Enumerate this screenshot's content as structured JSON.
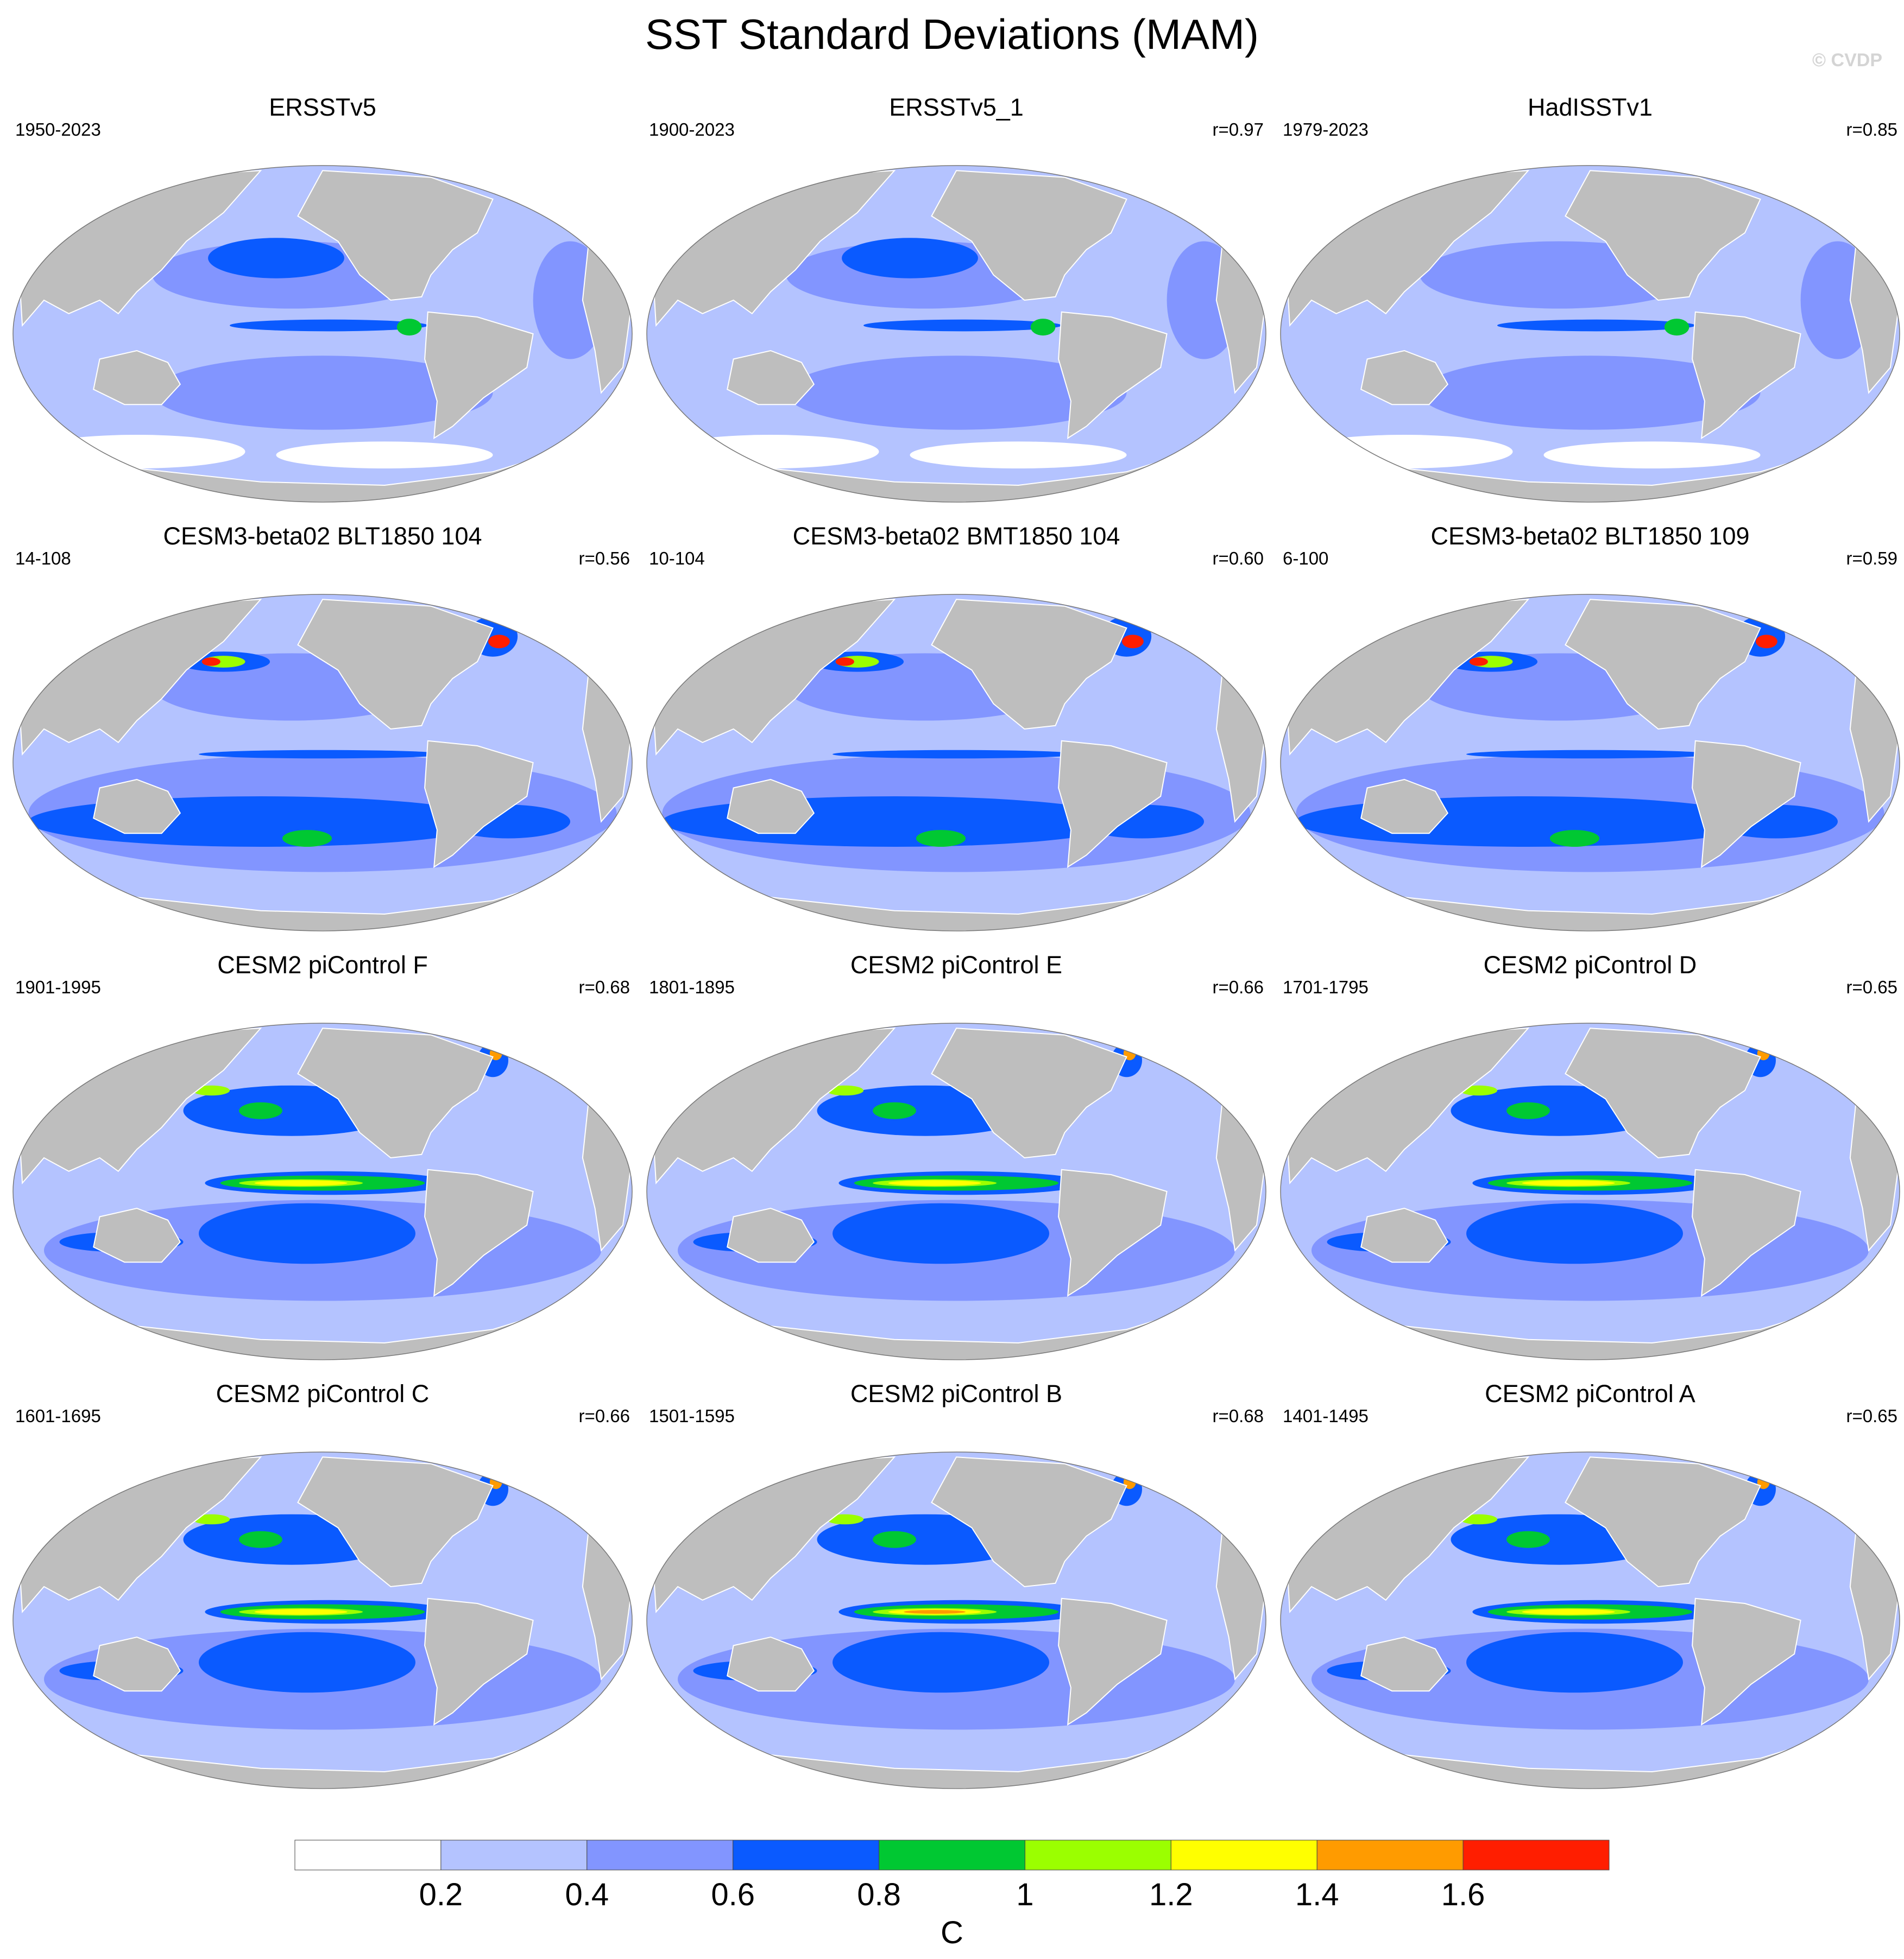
{
  "title": "SST Standard Deviations (MAM)",
  "copyright": "© CVDP",
  "panels": [
    {
      "title": "ERSSTv5",
      "period": "1950-2023",
      "r": "",
      "pattern": "obs",
      "nino_max": 1.0
    },
    {
      "title": "ERSSTv5_1",
      "period": "1900-2023",
      "r": "r=0.97",
      "pattern": "obs",
      "nino_max": 1.0
    },
    {
      "title": "HadISSTv1",
      "period": "1979-2023",
      "r": "r=0.85",
      "pattern": "obs_low",
      "nino_max": 0.9
    },
    {
      "title": "CESM3-beta02 BLT1850 104",
      "period": "14-108",
      "r": "r=0.56",
      "pattern": "cesm3",
      "nino_max": 0.8
    },
    {
      "title": "CESM3-beta02 BMT1850 104",
      "period": "10-104",
      "r": "r=0.60",
      "pattern": "cesm3",
      "nino_max": 0.8
    },
    {
      "title": "CESM3-beta02 BLT1850 109",
      "period": "6-100",
      "r": "r=0.59",
      "pattern": "cesm3",
      "nino_max": 0.8
    },
    {
      "title": "CESM2 piControl F",
      "period": "1901-1995",
      "r": "r=0.68",
      "pattern": "cesm2",
      "nino_max": 1.3
    },
    {
      "title": "CESM2 piControl E",
      "period": "1801-1895",
      "r": "r=0.66",
      "pattern": "cesm2",
      "nino_max": 1.4
    },
    {
      "title": "CESM2 piControl D",
      "period": "1701-1795",
      "r": "r=0.65",
      "pattern": "cesm2",
      "nino_max": 1.4
    },
    {
      "title": "CESM2 piControl C",
      "period": "1601-1695",
      "r": "r=0.66",
      "pattern": "cesm2",
      "nino_max": 1.3
    },
    {
      "title": "CESM2 piControl B",
      "period": "1501-1595",
      "r": "r=0.68",
      "pattern": "cesm2",
      "nino_max": 1.5
    },
    {
      "title": "CESM2 piControl A",
      "period": "1401-1495",
      "r": "r=0.65",
      "pattern": "cesm2",
      "nino_max": 1.4
    }
  ],
  "colorbar": {
    "unit": "C",
    "tick_labels": [
      "0.2",
      "0.4",
      "0.6",
      "0.8",
      "1",
      "1.2",
      "1.4",
      "1.6"
    ],
    "colors": [
      "#ffffff",
      "#b4c3ff",
      "#8295ff",
      "#0a5aff",
      "#00c832",
      "#9bff00",
      "#ffff00",
      "#ff9b00",
      "#ff1e00"
    ]
  },
  "land_color": "#bebebe"
}
